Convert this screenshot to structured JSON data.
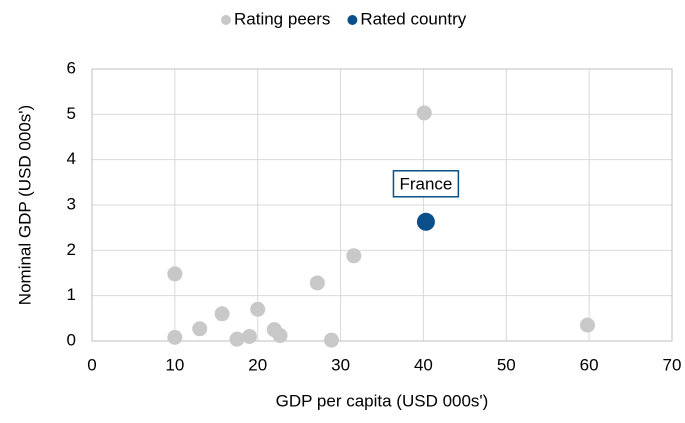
{
  "chart_data": {
    "type": "scatter",
    "x_label": "GDP per capita (USD 000s')",
    "y_label": "Nominal GDP (USD 000s')",
    "series": [
      {
        "name": "Rating peers",
        "color": "#c8c8c8",
        "x": [
          10,
          10,
          13,
          15.7,
          17.5,
          19,
          20,
          22,
          22.7,
          27.2,
          28.9,
          31.6,
          40.1,
          59.8
        ],
        "y": [
          1.48,
          0.08,
          0.27,
          0.6,
          0.04,
          0.1,
          0.7,
          0.25,
          0.12,
          1.28,
          0.02,
          1.88,
          5.03,
          0.35
        ]
      },
      {
        "name": "Rated country",
        "color": "#0b4f8a",
        "x": [
          40.3
        ],
        "y": [
          2.63
        ]
      }
    ],
    "annotations": [
      {
        "text": "France"
      }
    ],
    "xlim": [
      0,
      70
    ],
    "xticks": [
      0,
      10,
      20,
      30,
      40,
      50,
      60,
      70
    ],
    "ylim": [
      0,
      6
    ],
    "yticks": [
      0,
      1,
      2,
      3,
      4,
      5,
      6
    ],
    "grid": true
  }
}
